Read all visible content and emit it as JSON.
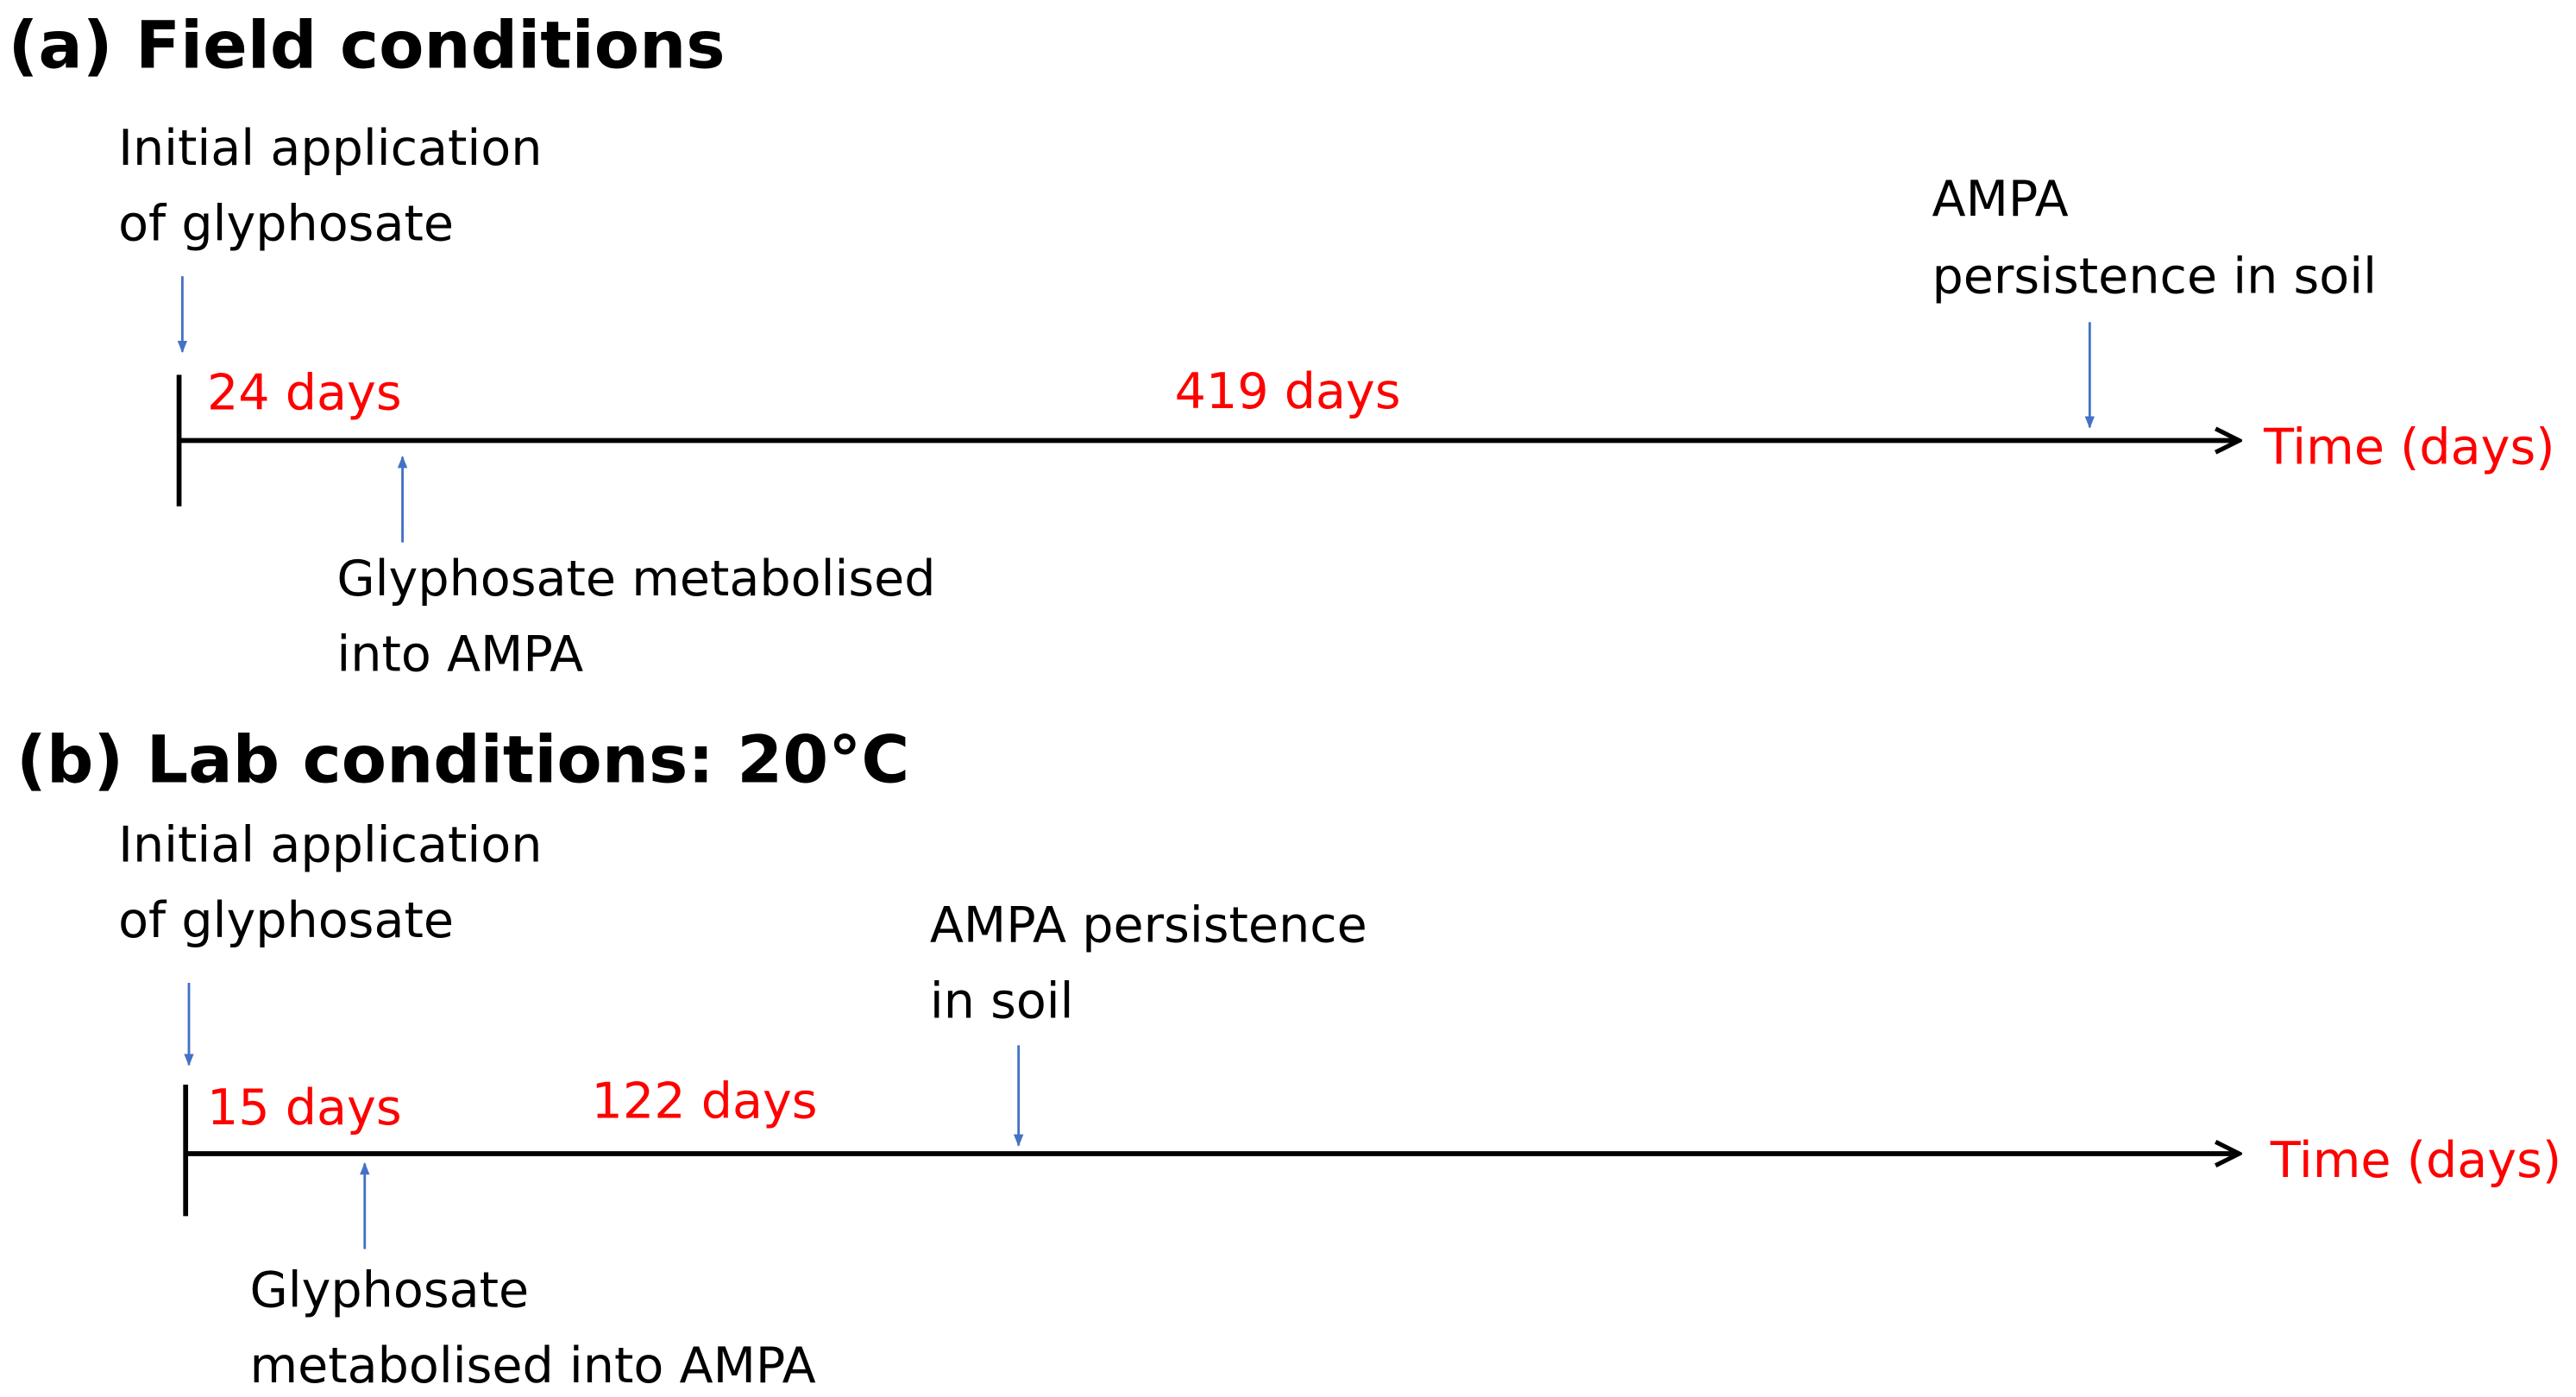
{
  "panel_a": {
    "title": "(a) Field conditions",
    "start_label": [
      "Initial application",
      "of glyphosate"
    ],
    "metabolised_label": [
      "Glyphosate metabolised",
      "into AMPA"
    ],
    "persistence_label": [
      "AMPA",
      "persistence in soil"
    ],
    "first_interval": "24 days",
    "second_interval": "419 days",
    "axis_label": "Time (days)"
  },
  "panel_b": {
    "title": "(b) Lab conditions: 20°C",
    "start_label": [
      "Initial application",
      "of glyphosate"
    ],
    "metabolised_label": [
      "Glyphosate",
      "metabolised into AMPA"
    ],
    "persistence_label": [
      "AMPA persistence",
      "in soil"
    ],
    "first_interval": "15 days",
    "second_interval": "122 days",
    "axis_label": "Time (days)"
  }
}
